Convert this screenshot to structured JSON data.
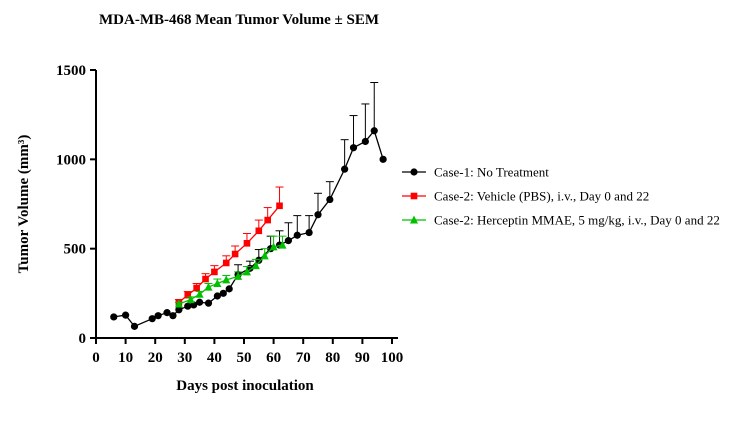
{
  "chart_data": {
    "type": "line",
    "title": "MDA-MB-468 Mean Tumor Volume ± SEM",
    "xlabel": "Days post inoculation",
    "ylabel": "Tumor Volume (mm³)",
    "xlim": [
      0,
      100
    ],
    "ylim": [
      0,
      1500
    ],
    "x_ticks": [
      "0",
      "10",
      "20",
      "30",
      "40",
      "50",
      "60",
      "70",
      "80",
      "90",
      "100"
    ],
    "y_ticks": [
      "0",
      "500",
      "1000",
      "1500"
    ],
    "grid": false,
    "legend_position": "right",
    "series": [
      {
        "name": "Case-1: No Treatment",
        "color": "#000000",
        "marker": "circle",
        "x": [
          6,
          10,
          13,
          19,
          21,
          24,
          26,
          28,
          31,
          33,
          35,
          38,
          41,
          43,
          45,
          48,
          52,
          55,
          59,
          62,
          65,
          68,
          72,
          75,
          79,
          84,
          87,
          91,
          94,
          97
        ],
        "y": [
          118,
          128,
          65,
          108,
          125,
          142,
          125,
          158,
          178,
          185,
          200,
          195,
          235,
          250,
          275,
          355,
          390,
          435,
          500,
          520,
          545,
          575,
          590,
          690,
          775,
          945,
          1065,
          1100,
          1160,
          1000
        ],
        "err": [
          0,
          0,
          0,
          0,
          0,
          0,
          0,
          0,
          0,
          0,
          0,
          0,
          0,
          0,
          0,
          55,
          40,
          60,
          70,
          80,
          100,
          110,
          95,
          120,
          100,
          165,
          180,
          210,
          270,
          0
        ]
      },
      {
        "name": "Case-2: Vehicle (PBS), i.v., Day 0 and 22",
        "color": "#ff0000",
        "marker": "square",
        "x": [
          28,
          31,
          34,
          37,
          40,
          44,
          47,
          51,
          55,
          58,
          62
        ],
        "y": [
          200,
          240,
          280,
          330,
          370,
          420,
          470,
          530,
          600,
          660,
          740
        ],
        "err": [
          15,
          20,
          25,
          30,
          35,
          40,
          45,
          55,
          60,
          70,
          105
        ]
      },
      {
        "name": "Case-2: Herceptin MMAE, 5 mg/kg, i.v., Day 0 and 22",
        "color": "#00c000",
        "marker": "triangle",
        "x": [
          28,
          32,
          35,
          38,
          41,
          44,
          48,
          51,
          54,
          57,
          60,
          63
        ],
        "y": [
          190,
          215,
          245,
          285,
          305,
          325,
          345,
          370,
          405,
          460,
          510,
          520
        ],
        "err": [
          10,
          15,
          15,
          20,
          25,
          25,
          25,
          30,
          35,
          40,
          60,
          50
        ]
      }
    ]
  }
}
